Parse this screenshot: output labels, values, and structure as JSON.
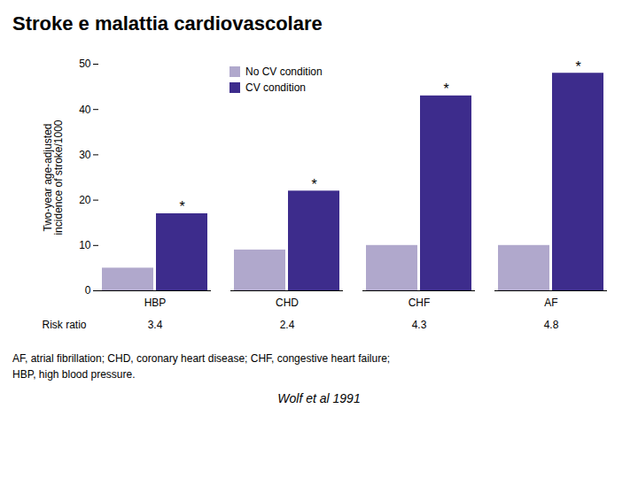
{
  "chart_data": {
    "type": "bar",
    "title": "Stroke e malattia cardiovascolare",
    "categories": [
      "HBP",
      "CHD",
      "CHF",
      "AF"
    ],
    "series": [
      {
        "name": "No CV condition",
        "color": "#b0a8cc",
        "values": [
          5,
          9,
          10,
          10
        ]
      },
      {
        "name": "CV condition",
        "color": "#3d2c8c",
        "values": [
          17,
          22,
          43,
          48
        ]
      }
    ],
    "ylabel": "Two-year age-adjusted\nincidence of stroke/1000",
    "ylim": [
      0,
      50
    ],
    "yticks": [
      0,
      10,
      20,
      30,
      40,
      50
    ],
    "legend": "upper left",
    "annotations": [
      {
        "text": "*",
        "category": "HBP",
        "series": "CV condition"
      },
      {
        "text": "*",
        "category": "CHD",
        "series": "CV condition"
      },
      {
        "text": "*",
        "category": "CHF",
        "series": "CV condition"
      },
      {
        "text": "*",
        "category": "AF",
        "series": "CV condition"
      }
    ],
    "risk_ratio_label": "Risk ratio",
    "risk_ratios": [
      3.4,
      2.4,
      4.3,
      4.8
    ],
    "footnotes": [
      "AF, atrial fibrillation; CHD, coronary heart disease; CHF, congestive heart failure;",
      "HBP, high blood pressure."
    ],
    "source": "Wolf et al 1991"
  }
}
